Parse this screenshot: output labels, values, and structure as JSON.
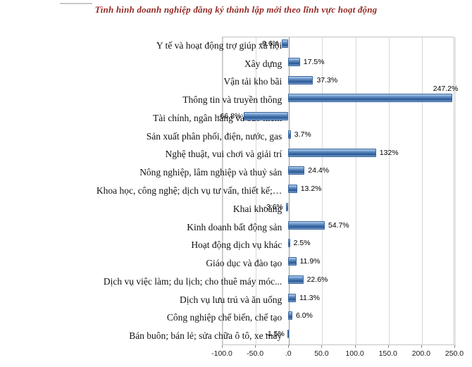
{
  "title": "Tình hình doanh nghiệp đăng ký thành lập mới theo lĩnh vực hoạt động",
  "chart_data": {
    "type": "bar",
    "orientation": "horizontal",
    "title": "Tình hình doanh nghiệp đăng ký thành lập mới theo lĩnh vực hoạt động",
    "categories": [
      "Y tế và hoạt động trợ giúp xã hội",
      "Xây dựng",
      "Vận tải kho bãi",
      "Thông tin và truyền thông",
      "Tài chính, ngân hàng và bảo hiểm",
      "Sản xuất phân phối, điện, nước, gas",
      "Nghệ thuật, vui chơi và giải trí",
      "Nông nghiệp, lâm nghiệp và thuỷ sản",
      "Khoa học, công nghệ; dịch vụ tư vấn, thiết kế;…",
      "Khai khoáng",
      "Kinh doanh bất động sản",
      "Hoạt động dịch vụ khác",
      "Giáo dục và đào tạo",
      "Dịch vụ việc làm; du lịch; cho thuê máy móc...",
      "Dịch vụ lưu trú và ăn uống",
      "Công nghiệp chế biến, chế tạo",
      "Bán buôn; bán lẻ; sửa chữa ô tô, xe máy"
    ],
    "values": [
      -9.6,
      17.5,
      37.3,
      247.2,
      -66.8,
      3.7,
      132,
      24.4,
      13.2,
      -3.6,
      54.7,
      2.5,
      11.9,
      22.6,
      11.3,
      6.0,
      -1.5
    ],
    "value_labels": [
      "-9.6%",
      "17.5%",
      "37.3%",
      "247.2%",
      "-66.8%",
      "3.7%",
      "132%",
      "24.4%",
      "13.2%",
      "-3.6%",
      "54.7%",
      "2.5%",
      "11.9%",
      "22.6%",
      "11.3%",
      "6.0%",
      "-1.5%"
    ],
    "x_tick_labels": [
      "-100.0",
      "-50.0",
      ".0",
      "50.0",
      "100.0",
      "150.0",
      "200.0",
      "250.0"
    ],
    "x_tick_values": [
      -100,
      -50,
      0,
      50,
      100,
      150,
      200,
      250
    ],
    "xlim": [
      -100,
      250
    ],
    "grid": true,
    "legend": false,
    "bar_color": "#4f81bd",
    "title_color": "#942a25"
  }
}
